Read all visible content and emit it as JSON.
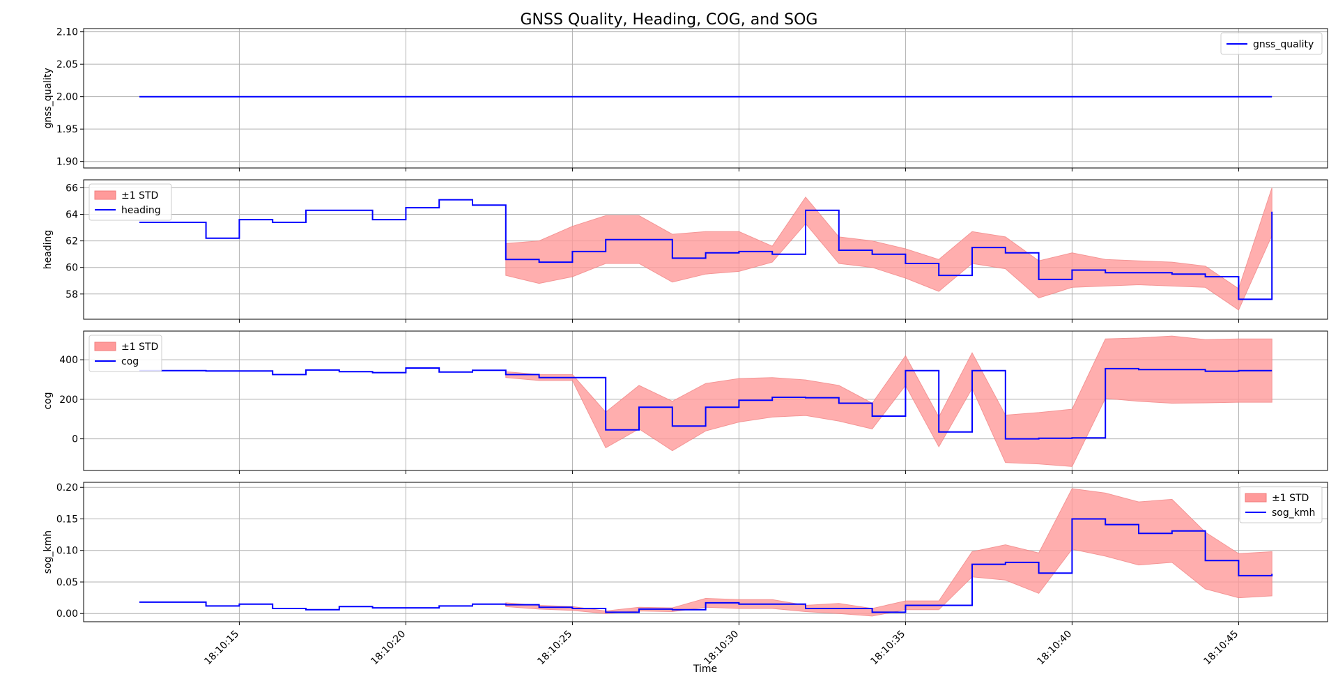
{
  "title": "GNSS Quality, Heading, COG, and SOG",
  "xlabel": "Time",
  "x_ticks": [
    "18:10:15",
    "18:10:20",
    "18:10:25",
    "18:10:30",
    "18:10:35",
    "18:10:40",
    "18:10:45"
  ],
  "legend_band_label": "±1 STD",
  "colors": {
    "line": "#0000ff",
    "band": "#ff9a9a",
    "grid": "#b0b0b0"
  },
  "chart_data": [
    {
      "type": "line",
      "ylabel": "gnss_quality",
      "ylim": [
        1.89,
        2.105
      ],
      "yticks": [
        1.9,
        1.95,
        2.0,
        2.05,
        2.1
      ],
      "ytick_labels": [
        "1.90",
        "1.95",
        "2.00",
        "2.05",
        "2.10"
      ],
      "legend_position": "top-right",
      "grid": true,
      "step": false,
      "series": [
        {
          "name": "gnss_quality",
          "x": [
            "18:10:12",
            "18:10:46"
          ],
          "values": [
            2.0,
            2.0
          ]
        }
      ]
    },
    {
      "type": "line",
      "ylabel": "heading",
      "ylim": [
        56.1,
        66.6
      ],
      "yticks": [
        58,
        60,
        62,
        64,
        66
      ],
      "ytick_labels": [
        "58",
        "60",
        "62",
        "64",
        "66"
      ],
      "legend_position": "top-left",
      "grid": true,
      "step": true,
      "series": [
        {
          "name": "heading",
          "x": [
            "18:10:12",
            "18:10:14",
            "18:10:15",
            "18:10:16",
            "18:10:17",
            "18:10:18",
            "18:10:19",
            "18:10:20",
            "18:10:21",
            "18:10:22",
            "18:10:23",
            "18:10:24",
            "18:10:25",
            "18:10:26",
            "18:10:27",
            "18:10:28",
            "18:10:29",
            "18:10:30",
            "18:10:31",
            "18:10:32",
            "18:10:33",
            "18:10:34",
            "18:10:35",
            "18:10:36",
            "18:10:37",
            "18:10:38",
            "18:10:39",
            "18:10:40",
            "18:10:41",
            "18:10:42",
            "18:10:43",
            "18:10:44",
            "18:10:45",
            "18:10:46"
          ],
          "values": [
            63.4,
            62.2,
            63.6,
            63.4,
            64.3,
            64.3,
            63.6,
            64.5,
            65.1,
            64.7,
            60.6,
            60.4,
            61.2,
            62.1,
            62.1,
            60.7,
            61.1,
            61.2,
            61.0,
            64.3,
            61.3,
            61.0,
            60.3,
            59.4,
            61.5,
            61.1,
            59.1,
            59.8,
            59.6,
            59.6,
            59.5,
            59.3,
            57.6,
            64.2
          ],
          "std": [
            null,
            null,
            null,
            null,
            null,
            null,
            null,
            null,
            null,
            null,
            1.2,
            1.6,
            1.9,
            1.8,
            1.8,
            1.8,
            1.6,
            1.5,
            0.6,
            1.0,
            1.0,
            1.0,
            1.1,
            1.2,
            1.2,
            1.2,
            1.4,
            1.3,
            1.0,
            0.9,
            0.9,
            0.8,
            0.8,
            1.8
          ]
        }
      ]
    },
    {
      "type": "line",
      "ylabel": "cog",
      "ylim": [
        -160,
        545
      ],
      "yticks": [
        0,
        200,
        400
      ],
      "ytick_labels": [
        "0",
        "200",
        "400"
      ],
      "legend_position": "top-left",
      "grid": true,
      "step": true,
      "series": [
        {
          "name": "cog",
          "x": [
            "18:10:12",
            "18:10:14",
            "18:10:15",
            "18:10:16",
            "18:10:17",
            "18:10:18",
            "18:10:19",
            "18:10:20",
            "18:10:21",
            "18:10:22",
            "18:10:23",
            "18:10:24",
            "18:10:25",
            "18:10:26",
            "18:10:27",
            "18:10:28",
            "18:10:29",
            "18:10:30",
            "18:10:31",
            "18:10:32",
            "18:10:33",
            "18:10:34",
            "18:10:35",
            "18:10:36",
            "18:10:37",
            "18:10:38",
            "18:10:39",
            "18:10:40",
            "18:10:41",
            "18:10:42",
            "18:10:43",
            "18:10:44",
            "18:10:45",
            "18:10:46"
          ],
          "values": [
            345,
            343,
            343,
            325,
            348,
            340,
            335,
            358,
            338,
            347,
            325,
            310,
            310,
            45,
            160,
            65,
            160,
            195,
            210,
            208,
            180,
            115,
            345,
            35,
            345,
            0,
            3,
            5,
            355,
            350,
            350,
            342,
            345,
            345
          ],
          "std": [
            null,
            null,
            null,
            null,
            null,
            null,
            null,
            null,
            null,
            null,
            15,
            15,
            15,
            90,
            110,
            125,
            120,
            110,
            100,
            90,
            90,
            65,
            75,
            75,
            90,
            120,
            130,
            145,
            150,
            160,
            170,
            160,
            160,
            160
          ]
        }
      ]
    },
    {
      "type": "line",
      "ylabel": "sog_kmh",
      "ylim": [
        -0.013,
        0.208
      ],
      "yticks": [
        0.0,
        0.05,
        0.1,
        0.15,
        0.2
      ],
      "ytick_labels": [
        "0.00",
        "0.05",
        "0.10",
        "0.15",
        "0.20"
      ],
      "legend_position": "top-right",
      "grid": true,
      "step": true,
      "series": [
        {
          "name": "sog_kmh",
          "x": [
            "18:10:12",
            "18:10:14",
            "18:10:15",
            "18:10:16",
            "18:10:17",
            "18:10:18",
            "18:10:19",
            "18:10:20",
            "18:10:21",
            "18:10:22",
            "18:10:23",
            "18:10:24",
            "18:10:25",
            "18:10:26",
            "18:10:27",
            "18:10:28",
            "18:10:29",
            "18:10:30",
            "18:10:31",
            "18:10:32",
            "18:10:33",
            "18:10:34",
            "18:10:35",
            "18:10:36",
            "18:10:37",
            "18:10:38",
            "18:10:39",
            "18:10:40",
            "18:10:41",
            "18:10:42",
            "18:10:43",
            "18:10:44",
            "18:10:45",
            "18:10:46"
          ],
          "values": [
            0.018,
            0.012,
            0.015,
            0.008,
            0.006,
            0.011,
            0.009,
            0.009,
            0.012,
            0.015,
            0.014,
            0.01,
            0.008,
            0.002,
            0.007,
            0.006,
            0.017,
            0.015,
            0.015,
            0.008,
            0.008,
            0.002,
            0.013,
            0.013,
            0.078,
            0.081,
            0.064,
            0.15,
            0.141,
            0.127,
            0.131,
            0.084,
            0.06,
            0.063
          ],
          "std": [
            null,
            null,
            null,
            null,
            null,
            null,
            null,
            null,
            null,
            null,
            0.003,
            0.003,
            0.003,
            0.002,
            0.003,
            0.003,
            0.007,
            0.007,
            0.007,
            0.005,
            0.008,
            0.006,
            0.007,
            0.007,
            0.02,
            0.028,
            0.032,
            0.048,
            0.05,
            0.05,
            0.05,
            0.045,
            0.035,
            0.035
          ]
        }
      ]
    }
  ]
}
